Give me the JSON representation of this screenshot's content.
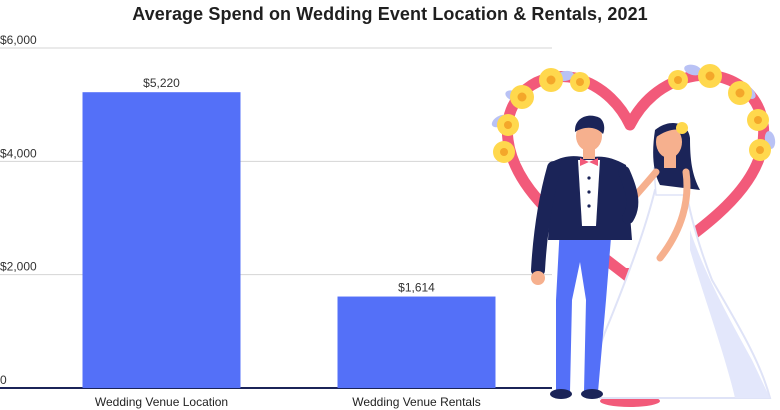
{
  "chart_data": {
    "type": "bar",
    "title": "Average Spend on Wedding Event Location & Rentals, 2021",
    "xlabel": "",
    "ylabel": "",
    "categories": [
      "Wedding Venue Location",
      "Wedding Venue Rentals"
    ],
    "values": [
      5220,
      1614
    ],
    "data_labels": [
      "$5,220",
      "$1,614"
    ],
    "ylim": [
      0,
      6000
    ],
    "yticks": [
      0,
      2000,
      4000,
      6000
    ],
    "ytick_labels": [
      "0",
      "$2,000",
      "$4,000",
      "$6,000"
    ],
    "grid": true,
    "legend": "none",
    "bar_color": "#5470f8",
    "axis_color": "#1b2458"
  },
  "illustration": {
    "name": "wedding-couple-heart-arch",
    "colors": {
      "heart_frame": "#f25a7a",
      "flower_petal": "#ffd84d",
      "flower_center": "#f4a72a",
      "leaf": "#b9c2f5",
      "suit_jacket": "#1b2458",
      "pants": "#5470f8",
      "skin": "#f6b08e",
      "hair": "#1b2458",
      "dress": "#ffffff",
      "dress_shade": "#e3e7fb"
    }
  }
}
